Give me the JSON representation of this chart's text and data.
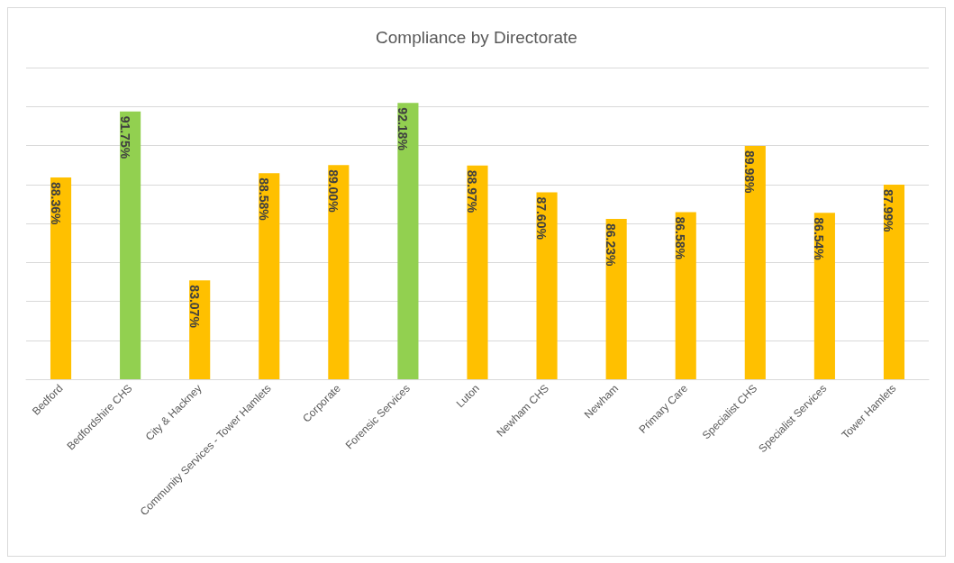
{
  "chart_data": {
    "type": "bar",
    "title": "Compliance by Directorate",
    "categories": [
      "Bedford",
      "Bedfordshire CHS",
      "City & Hackney",
      "Community Services - Tower Hamlets",
      "Corporate",
      "Forensic Services",
      "Luton",
      "Newham CHS",
      "Newham",
      "Primary Care",
      "Specialist CHS",
      "Specialist Services",
      "Tower Hamlets"
    ],
    "values": [
      88.36,
      91.75,
      83.07,
      88.58,
      89.0,
      92.18,
      88.97,
      87.6,
      86.23,
      86.58,
      89.98,
      86.54,
      87.99
    ],
    "value_labels": [
      "88.36%",
      "91.75%",
      "83.07%",
      "88.58%",
      "89.00%",
      "92.18%",
      "88.97%",
      "87.60%",
      "86.23%",
      "86.58%",
      "89.98%",
      "86.54%",
      "87.99%"
    ],
    "colors": [
      "#ffc000",
      "#92d050",
      "#ffc000",
      "#ffc000",
      "#ffc000",
      "#92d050",
      "#ffc000",
      "#ffc000",
      "#ffc000",
      "#ffc000",
      "#ffc000",
      "#ffc000",
      "#ffc000"
    ],
    "ylim": [
      78,
      94
    ],
    "yticks": [
      {
        "value": 78,
        "label": null
      },
      {
        "value": 80,
        "label": null
      },
      {
        "value": 82,
        "label": null
      },
      {
        "value": 84,
        "label": null
      },
      {
        "value": 86,
        "label": null
      },
      {
        "value": 88,
        "label": null
      },
      {
        "value": 90,
        "label": null
      },
      {
        "value": 92,
        "label": null
      },
      {
        "value": 94,
        "label": null
      }
    ],
    "tick_labels": "x",
    "grid": "y"
  }
}
